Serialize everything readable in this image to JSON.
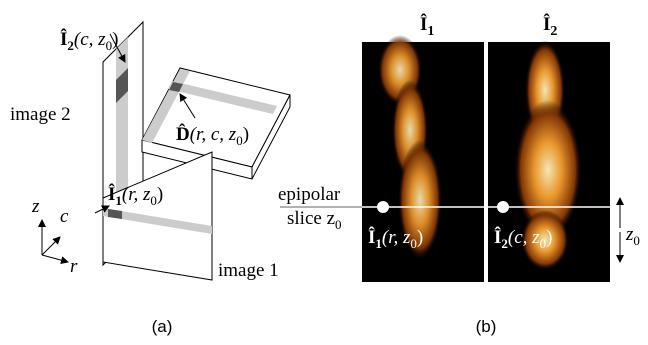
{
  "panel_a": {
    "i2_label": [
      "Î",
      "2",
      "(c, z",
      "0",
      ")"
    ],
    "image2": "image 2",
    "d_label": [
      "D̂",
      "(r, c, z",
      "0",
      ")"
    ],
    "i1_label": [
      "Î",
      "1",
      "(r, z",
      "0",
      ")"
    ],
    "image1": "image 1",
    "axes": [
      "z",
      "c",
      "r"
    ],
    "caption": "(a)"
  },
  "panel_b": {
    "title_1": [
      "Î",
      "1"
    ],
    "title_2": [
      "Î",
      "2"
    ],
    "epipolar": [
      "epipolar",
      "slice z",
      "0"
    ],
    "slice_1": [
      "Î",
      "1",
      "(r, z",
      "0",
      ")"
    ],
    "slice_2": [
      "Î",
      "2",
      "(c, z",
      "0",
      ")"
    ],
    "z0": [
      "z",
      "0"
    ],
    "caption": "(b)"
  }
}
